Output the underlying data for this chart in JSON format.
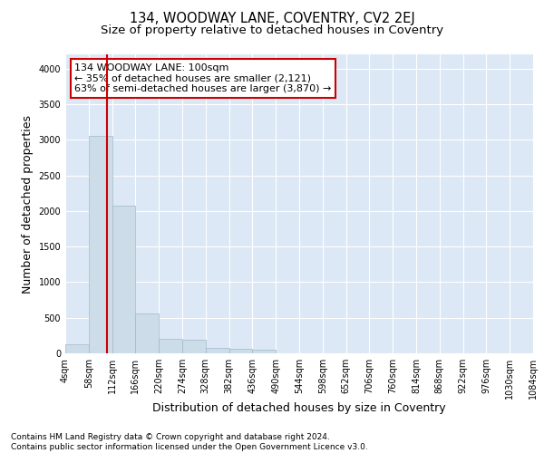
{
  "title": "134, WOODWAY LANE, COVENTRY, CV2 2EJ",
  "subtitle": "Size of property relative to detached houses in Coventry",
  "xlabel": "Distribution of detached houses by size in Coventry",
  "ylabel": "Number of detached properties",
  "bin_labels": [
    "4sqm",
    "58sqm",
    "112sqm",
    "166sqm",
    "220sqm",
    "274sqm",
    "328sqm",
    "382sqm",
    "436sqm",
    "490sqm",
    "544sqm",
    "598sqm",
    "652sqm",
    "706sqm",
    "760sqm",
    "814sqm",
    "868sqm",
    "922sqm",
    "976sqm",
    "1030sqm",
    "1084sqm"
  ],
  "bar_values": [
    130,
    3060,
    2080,
    560,
    200,
    195,
    75,
    60,
    50,
    0,
    0,
    0,
    0,
    0,
    0,
    0,
    0,
    0,
    0,
    0
  ],
  "bar_color": "#ccdce8",
  "bar_edge_color": "#a0b8cc",
  "annotation_text": "134 WOODWAY LANE: 100sqm\n← 35% of detached houses are smaller (2,121)\n63% of semi-detached houses are larger (3,870) →",
  "annotation_box_color": "white",
  "annotation_box_edge_color": "#cc0000",
  "red_line_color": "#cc0000",
  "footer_line1": "Contains HM Land Registry data © Crown copyright and database right 2024.",
  "footer_line2": "Contains public sector information licensed under the Open Government Licence v3.0.",
  "ylim": [
    0,
    4200
  ],
  "yticks": [
    0,
    500,
    1000,
    1500,
    2000,
    2500,
    3000,
    3500,
    4000
  ],
  "background_color": "#dce8f5",
  "grid_color": "#ffffff",
  "title_fontsize": 10.5,
  "subtitle_fontsize": 9.5,
  "axis_label_fontsize": 9,
  "tick_fontsize": 7,
  "footer_fontsize": 6.5,
  "annotation_fontsize": 8
}
